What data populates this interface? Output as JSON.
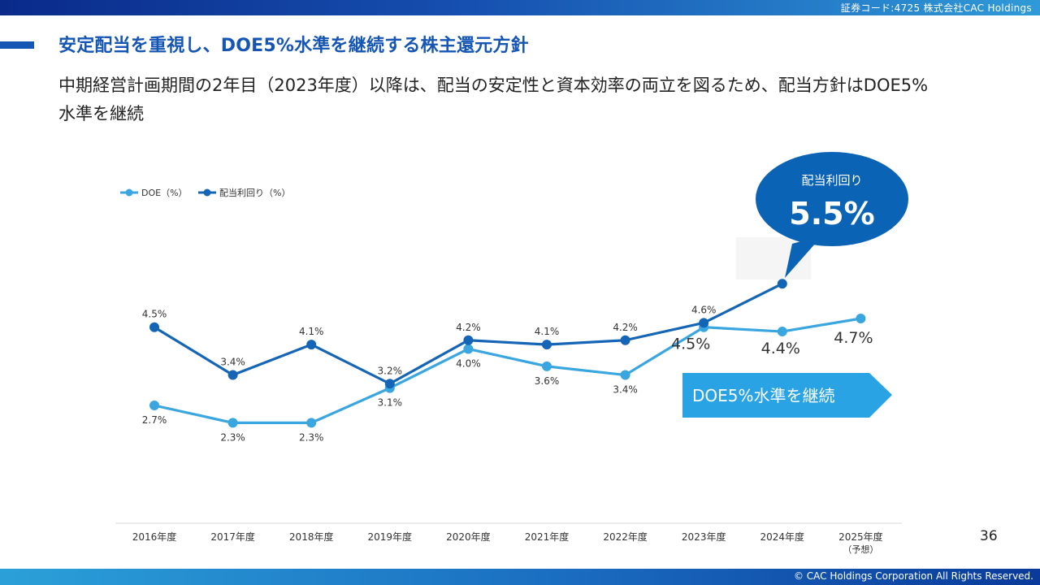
{
  "header": {
    "securities_code": "証券コード:4725 株式会社CAC Holdings"
  },
  "slide": {
    "title": "安定配当を重視し、DOE5%水準を継続する株主還元方針",
    "subtitle": "中期経営計画期間の2年目（2023年度）以降は、配当の安定性と資本効率の両立を図るため、配当方針はDOE5%水準を継続",
    "page_number": "36"
  },
  "footer": {
    "copyright": "© CAC Holdings Corporation All Rights Reserved."
  },
  "colors": {
    "doe": "#3aa6e0",
    "yield": "#1565b6",
    "title": "#1556b4",
    "callout": "#0a63b4",
    "arrow": "#29a3e3"
  },
  "callout": {
    "label": "配当利回り",
    "value": "5.5%"
  },
  "arrow_banner": {
    "label": "DOE5%水準を継続"
  },
  "chart_data": {
    "type": "line",
    "categories": [
      "2016年度",
      "2017年度",
      "2018年度",
      "2019年度",
      "2020年度",
      "2021年度",
      "2022年度",
      "2023年度",
      "2024年度",
      "2025年度"
    ],
    "category_notes": [
      "",
      "",
      "",
      "",
      "",
      "",
      "",
      "",
      "",
      "（予想）"
    ],
    "series": [
      {
        "name": "DOE（%）",
        "values": [
          2.7,
          2.3,
          2.3,
          3.1,
          4.0,
          3.6,
          3.4,
          4.5,
          4.4,
          4.7
        ],
        "labels": [
          "2.7%",
          "2.3%",
          "2.3%",
          "3.1%",
          "4.0%",
          "3.6%",
          "3.4%",
          "4.5%",
          "4.4%",
          "4.7%"
        ]
      },
      {
        "name": "配当利回り（%）",
        "values": [
          4.5,
          3.4,
          4.1,
          3.2,
          4.2,
          4.1,
          4.2,
          4.6,
          5.5,
          null
        ],
        "labels": [
          "4.5%",
          "3.4%",
          "4.1%",
          "3.2%",
          "4.2%",
          "4.1%",
          "4.2%",
          "4.6%",
          "",
          ""
        ]
      }
    ],
    "legend_position": "top-left",
    "grid": false
  }
}
